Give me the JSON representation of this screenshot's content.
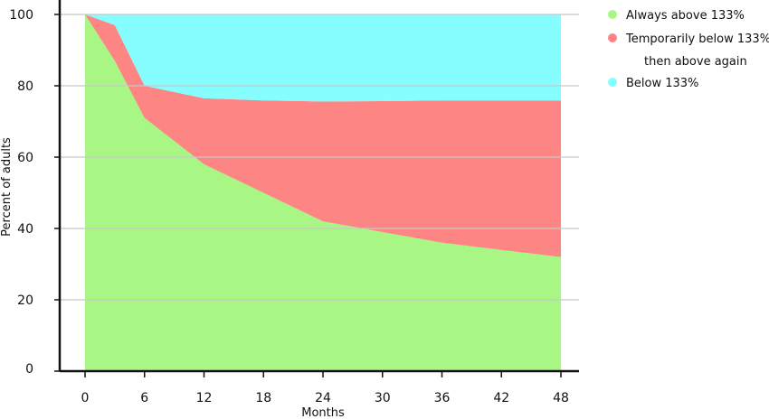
{
  "chart_data": {
    "type": "area",
    "stacked": true,
    "x": [
      0,
      3,
      6,
      12,
      18,
      24,
      30,
      36,
      42,
      48
    ],
    "series": [
      {
        "name": "Always above 133%",
        "color": "#a8f785",
        "values": [
          100,
          87,
          71,
          58,
          50,
          42,
          39,
          36,
          34,
          32
        ]
      },
      {
        "name_lines": [
          "Temporarily below 133%,",
          "then above again"
        ],
        "color": "#fd8583",
        "values": [
          0,
          10,
          9,
          18.5,
          25.9,
          33.6,
          36.7,
          39.9,
          41.9,
          43.9
        ]
      },
      {
        "name": "Below 133%",
        "color": "#86fdfe",
        "values": [
          0,
          3,
          20,
          23.5,
          24.1,
          24.4,
          24.3,
          24.1,
          24.1,
          24.1
        ]
      }
    ],
    "xlabel": "Months",
    "ylabel": "Percent of adults",
    "ylim": [
      0,
      100
    ],
    "xlim": [
      -4.8,
      50
    ],
    "xticks": [
      0,
      6,
      12,
      18,
      24,
      30,
      36,
      42,
      48
    ],
    "yticks": [
      0,
      20,
      40,
      60,
      80,
      100
    ],
    "grid": true,
    "legend_position": "top-right"
  }
}
